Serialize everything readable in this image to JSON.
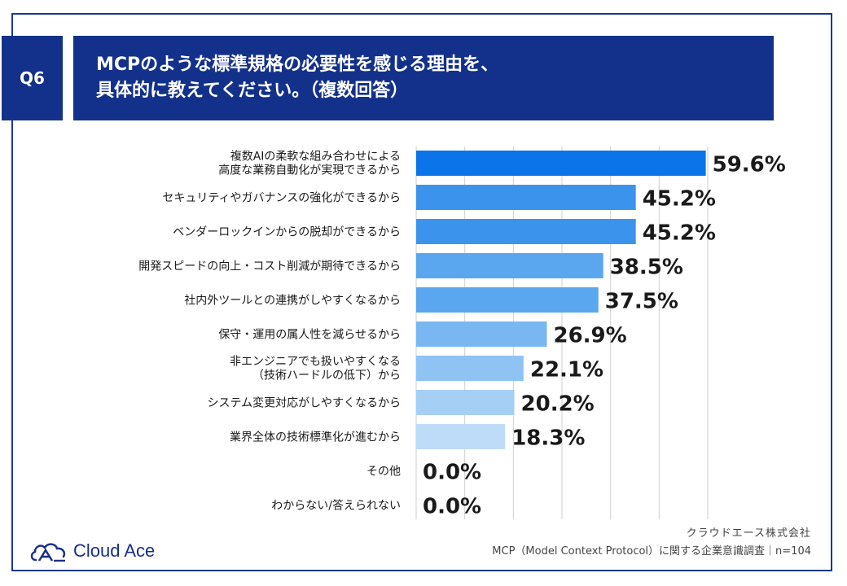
{
  "header": {
    "badge": "Q6",
    "title_line1": "MCPのような標準規格の必要性を感じる理由を、",
    "title_line2": "具体的に教えてください。（複数回答）"
  },
  "chart_data": {
    "type": "bar",
    "orientation": "horizontal",
    "categories": [
      [
        "複数AIの柔軟な組み合わせによる",
        "高度な業務自動化が実現できるから"
      ],
      [
        "セキュリティやガバナンスの強化ができるから"
      ],
      [
        "ベンダーロックインからの脱却ができるから"
      ],
      [
        "開発スピードの向上・コスト削減が期待できるから"
      ],
      [
        "社内外ツールとの連携がしやすくなるから"
      ],
      [
        "保守・運用の属人性を減らせるから"
      ],
      [
        "非エンジニアでも扱いやすくなる",
        "（技術ハードルの低下）から"
      ],
      [
        "システム変更対応がしやすくなるから"
      ],
      [
        "業界全体の技術標準化が進むから"
      ],
      [
        "その他"
      ],
      [
        "わからない/答えられない"
      ]
    ],
    "values": [
      59.6,
      45.2,
      45.2,
      38.5,
      37.5,
      26.9,
      22.1,
      20.2,
      18.3,
      0.0,
      0.0
    ],
    "value_labels": [
      "59.6%",
      "45.2%",
      "45.2%",
      "38.5%",
      "37.5%",
      "26.9%",
      "22.1%",
      "20.2%",
      "18.3%",
      "0.0%",
      "0.0%"
    ],
    "bar_colors": [
      "#0a74e8",
      "#3b93ec",
      "#3b93ec",
      "#5aa6ef",
      "#5aa6ef",
      "#79b7f2",
      "#8fc3f4",
      "#a6cff6",
      "#bedcf8",
      "#bedcf8",
      "#bedcf8"
    ],
    "xlim": [
      0,
      60
    ],
    "grid": true
  },
  "footer": {
    "company": "クラウドエース株式会社",
    "note": "MCP（Model Context Protocol）に関する企業意識調査｜n=104",
    "logo_text": "Cloud Ace"
  },
  "colors": {
    "navy": "#13318a",
    "logo": "#1a2f88"
  }
}
